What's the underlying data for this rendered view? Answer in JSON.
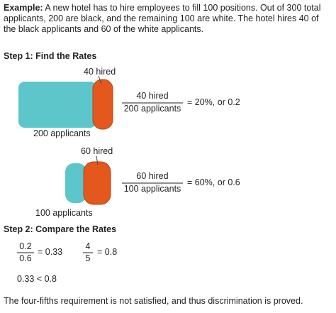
{
  "example": {
    "label": "Example:",
    "text": "A new hotel has to hire employees to fill 100 positions. Out of 300 total applicants, 200 are black, and the remaining 100 are white. The hotel hires 40 of the black applicants and 60 of the white applicants."
  },
  "step1": {
    "heading": "Step 1: Find the Rates",
    "groups": [
      {
        "hired_label": "40 hired",
        "numerator": "40 hired",
        "denominator": "200 applicants",
        "result": "= 20%, or 0.2",
        "applicants_label": "200 applicants"
      },
      {
        "hired_label": "60 hired",
        "numerator": "60 hired",
        "denominator": "100 applicants",
        "result": "= 60%, or 0.6",
        "applicants_label": "100 applicants"
      }
    ]
  },
  "step2": {
    "heading": "Step 2: Compare the Rates",
    "fractions": [
      {
        "numerator": "0.2",
        "denominator": "0.6",
        "result": "= 0.33"
      },
      {
        "numerator": "4",
        "denominator": "5",
        "result": "= 0.8"
      }
    ],
    "comparison": "0.33 < 0.8"
  },
  "conclusion": "The four-fifths requirement is not satisfied, and thus discrimination is proved."
}
